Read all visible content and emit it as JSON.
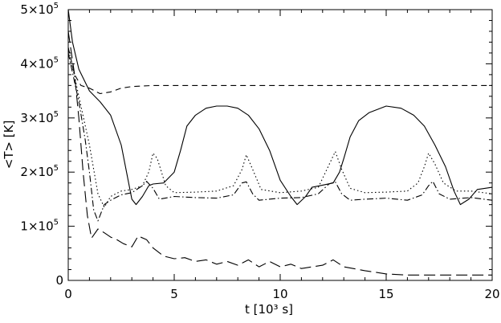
{
  "chart_data": {
    "type": "line",
    "title": "",
    "xlabel": "t [10³ s]",
    "ylabel": "<T> [K]",
    "xlim": [
      0,
      20
    ],
    "ylim": [
      0,
      500000
    ],
    "grid": false,
    "x_ticks": [
      {
        "value": 0,
        "label": "0"
      },
      {
        "value": 5,
        "label": "5"
      },
      {
        "value": 10,
        "label": "10"
      },
      {
        "value": 15,
        "label": "15"
      },
      {
        "value": 20,
        "label": "20"
      }
    ],
    "y_ticks": [
      {
        "value": 0,
        "base": "0",
        "exp": ""
      },
      {
        "value": 100000,
        "base": "1×10",
        "exp": "5"
      },
      {
        "value": 200000,
        "base": "2×10",
        "exp": "5"
      },
      {
        "value": 300000,
        "base": "3×10",
        "exp": "5"
      },
      {
        "value": 400000,
        "base": "4×10",
        "exp": "5"
      },
      {
        "value": 500000,
        "base": "5×10",
        "exp": "5"
      }
    ],
    "series": [
      {
        "style": "solid",
        "points": [
          [
            0,
            500000
          ],
          [
            0.2,
            440000
          ],
          [
            0.5,
            390000
          ],
          [
            1,
            350000
          ],
          [
            1.5,
            330000
          ],
          [
            2,
            305000
          ],
          [
            2.5,
            250000
          ],
          [
            3,
            150000
          ],
          [
            3.2,
            140000
          ],
          [
            3.5,
            155000
          ],
          [
            3.8,
            175000
          ],
          [
            4,
            178000
          ],
          [
            4.5,
            180000
          ],
          [
            5,
            200000
          ],
          [
            5.3,
            240000
          ],
          [
            5.6,
            285000
          ],
          [
            6,
            305000
          ],
          [
            6.5,
            318000
          ],
          [
            7,
            322000
          ],
          [
            7.5,
            322000
          ],
          [
            8,
            318000
          ],
          [
            8.5,
            305000
          ],
          [
            9,
            280000
          ],
          [
            9.5,
            240000
          ],
          [
            10,
            185000
          ],
          [
            10.5,
            155000
          ],
          [
            10.8,
            140000
          ],
          [
            11.2,
            155000
          ],
          [
            11.5,
            172000
          ],
          [
            12,
            176000
          ],
          [
            12.5,
            180000
          ],
          [
            12.8,
            200000
          ],
          [
            13,
            225000
          ],
          [
            13.3,
            265000
          ],
          [
            13.7,
            295000
          ],
          [
            14.2,
            310000
          ],
          [
            15,
            322000
          ],
          [
            15.7,
            318000
          ],
          [
            16.3,
            305000
          ],
          [
            16.8,
            285000
          ],
          [
            17.3,
            250000
          ],
          [
            17.8,
            210000
          ],
          [
            18.2,
            165000
          ],
          [
            18.5,
            140000
          ],
          [
            18.9,
            150000
          ],
          [
            19.3,
            168000
          ],
          [
            20,
            172000
          ]
        ]
      },
      {
        "style": "short-dash",
        "points": [
          [
            0,
            430000
          ],
          [
            0.3,
            380000
          ],
          [
            0.6,
            360000
          ],
          [
            1,
            355000
          ],
          [
            1.5,
            345000
          ],
          [
            2,
            348000
          ],
          [
            2.5,
            355000
          ],
          [
            3,
            358000
          ],
          [
            4,
            360000
          ],
          [
            6,
            360000
          ],
          [
            10,
            360000
          ],
          [
            15,
            360000
          ],
          [
            20,
            360000
          ]
        ]
      },
      {
        "style": "dotted",
        "points": [
          [
            0,
            430000
          ],
          [
            0.5,
            340000
          ],
          [
            1,
            250000
          ],
          [
            1.4,
            160000
          ],
          [
            1.7,
            135000
          ],
          [
            2,
            155000
          ],
          [
            2.5,
            165000
          ],
          [
            3,
            168000
          ],
          [
            3.5,
            175000
          ],
          [
            3.8,
            200000
          ],
          [
            4,
            235000
          ],
          [
            4.2,
            225000
          ],
          [
            4.6,
            175000
          ],
          [
            5,
            162000
          ],
          [
            6,
            163000
          ],
          [
            7,
            165000
          ],
          [
            7.8,
            175000
          ],
          [
            8.2,
            205000
          ],
          [
            8.4,
            232000
          ],
          [
            8.7,
            205000
          ],
          [
            9.1,
            168000
          ],
          [
            10,
            162000
          ],
          [
            11,
            165000
          ],
          [
            11.8,
            172000
          ],
          [
            12.2,
            205000
          ],
          [
            12.6,
            238000
          ],
          [
            12.9,
            205000
          ],
          [
            13.3,
            170000
          ],
          [
            14,
            162000
          ],
          [
            15,
            163000
          ],
          [
            16,
            165000
          ],
          [
            16.5,
            180000
          ],
          [
            16.8,
            210000
          ],
          [
            17,
            235000
          ],
          [
            17.3,
            215000
          ],
          [
            17.7,
            180000
          ],
          [
            18.3,
            165000
          ],
          [
            19,
            165000
          ],
          [
            20,
            160000
          ]
        ]
      },
      {
        "style": "dash-dot",
        "points": [
          [
            0,
            420000
          ],
          [
            0.5,
            330000
          ],
          [
            0.8,
            260000
          ],
          [
            1,
            200000
          ],
          [
            1.2,
            130000
          ],
          [
            1.4,
            110000
          ],
          [
            1.7,
            140000
          ],
          [
            2,
            148000
          ],
          [
            2.5,
            158000
          ],
          [
            3,
            162000
          ],
          [
            3.5,
            175000
          ],
          [
            3.7,
            183000
          ],
          [
            4,
            170000
          ],
          [
            4.3,
            150000
          ],
          [
            5,
            155000
          ],
          [
            6,
            153000
          ],
          [
            7,
            152000
          ],
          [
            7.8,
            158000
          ],
          [
            8.2,
            180000
          ],
          [
            8.4,
            182000
          ],
          [
            8.7,
            160000
          ],
          [
            9,
            148000
          ],
          [
            10,
            152000
          ],
          [
            11,
            153000
          ],
          [
            11.8,
            160000
          ],
          [
            12.3,
            178000
          ],
          [
            12.6,
            182000
          ],
          [
            12.9,
            160000
          ],
          [
            13.3,
            148000
          ],
          [
            14,
            150000
          ],
          [
            15,
            152000
          ],
          [
            16,
            148000
          ],
          [
            16.7,
            158000
          ],
          [
            17,
            175000
          ],
          [
            17.2,
            183000
          ],
          [
            17.5,
            160000
          ],
          [
            18,
            150000
          ],
          [
            19,
            153000
          ],
          [
            20,
            148000
          ]
        ]
      },
      {
        "style": "long-dash",
        "points": [
          [
            0,
            460000
          ],
          [
            0.3,
            380000
          ],
          [
            0.5,
            300000
          ],
          [
            0.7,
            200000
          ],
          [
            0.9,
            120000
          ],
          [
            1.1,
            78000
          ],
          [
            1.4,
            95000
          ],
          [
            1.7,
            88000
          ],
          [
            2,
            80000
          ],
          [
            2.3,
            75000
          ],
          [
            2.6,
            68000
          ],
          [
            3,
            62000
          ],
          [
            3.3,
            82000
          ],
          [
            3.7,
            75000
          ],
          [
            4,
            60000
          ],
          [
            4.5,
            45000
          ],
          [
            5,
            40000
          ],
          [
            5.5,
            42000
          ],
          [
            6,
            35000
          ],
          [
            6.5,
            38000
          ],
          [
            7,
            30000
          ],
          [
            7.5,
            35000
          ],
          [
            8,
            28000
          ],
          [
            8.5,
            38000
          ],
          [
            9,
            25000
          ],
          [
            9.5,
            35000
          ],
          [
            10,
            25000
          ],
          [
            10.5,
            30000
          ],
          [
            11,
            22000
          ],
          [
            11.5,
            25000
          ],
          [
            12,
            28000
          ],
          [
            12.5,
            38000
          ],
          [
            13,
            25000
          ],
          [
            14,
            18000
          ],
          [
            15,
            12000
          ],
          [
            16,
            10000
          ],
          [
            18,
            10000
          ],
          [
            20,
            10000
          ]
        ]
      }
    ]
  }
}
